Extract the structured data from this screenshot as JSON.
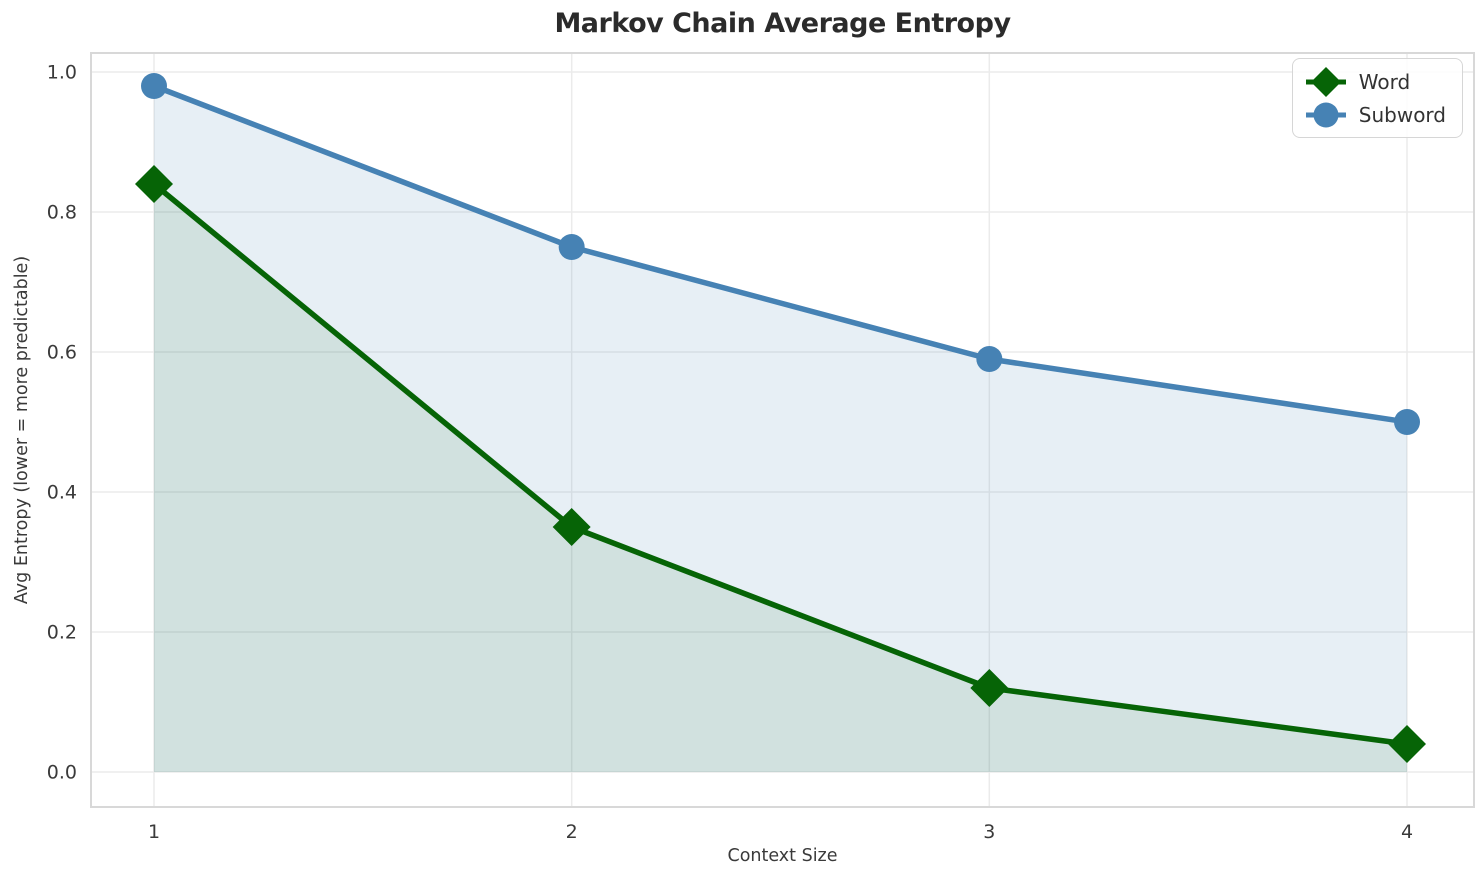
{
  "chart_data": {
    "type": "line",
    "title": "Markov Chain Average Entropy",
    "xlabel": "Context Size",
    "ylabel": "Avg Entropy (lower = more predictable)",
    "x": [
      1,
      2,
      3,
      4
    ],
    "series": [
      {
        "name": "Word",
        "values": [
          0.84,
          0.35,
          0.12,
          0.04
        ],
        "color": "#066406",
        "marker": "diamond",
        "fill_alpha": 0.1,
        "fill_to_zero": true
      },
      {
        "name": "Subword",
        "values": [
          0.98,
          0.75,
          0.59,
          0.5
        ],
        "color": "#4682b4",
        "marker": "circle",
        "fill_alpha": 0.13,
        "fill_to_zero": true
      }
    ],
    "xticks": [
      "1",
      "2",
      "3",
      "4"
    ],
    "yticks": [
      "0.0",
      "0.2",
      "0.4",
      "0.6",
      "0.8",
      "1.0"
    ],
    "ylim": [
      -0.05,
      1.03
    ],
    "grid": true,
    "grid_color": "#ebebeb",
    "spine_color": "#d8d8d8",
    "legend_position": "top-right",
    "legend_entries": [
      "Word",
      "Subword"
    ]
  }
}
